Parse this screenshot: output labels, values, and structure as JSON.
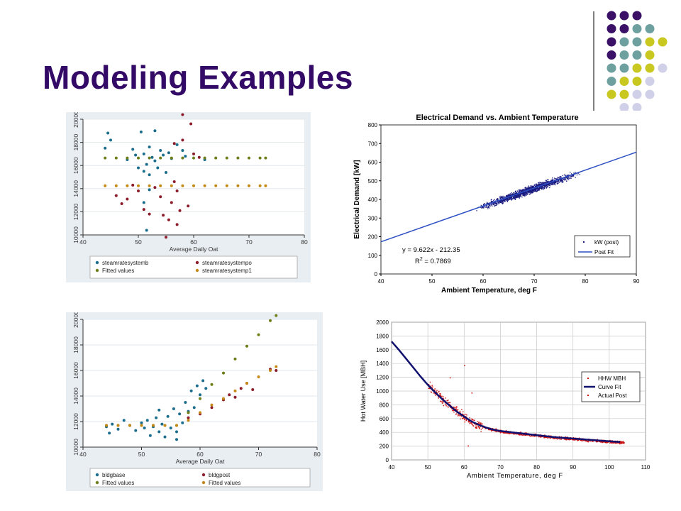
{
  "slide": {
    "title": "Modeling Examples",
    "colors": {
      "title": "#330a66",
      "purple": "#3a1166",
      "teal": "#6fa0a0",
      "olive": "#c8c820",
      "lavender": "#d0d0e8"
    },
    "decoration_rows": [
      [
        "purple",
        "purple",
        "purple"
      ],
      [
        "purple",
        "purple",
        "teal",
        "teal"
      ],
      [
        "purple",
        "teal",
        "teal",
        "olive",
        "olive"
      ],
      [
        "purple",
        "teal",
        "teal",
        "olive"
      ],
      [
        "teal",
        "teal",
        "olive",
        "olive",
        "lavender"
      ],
      [
        "teal",
        "olive",
        "olive",
        "lavender"
      ],
      [
        "olive",
        "olive",
        "lavender",
        "lavender"
      ],
      [
        "lavender",
        "lavender"
      ]
    ]
  },
  "chart_data": [
    {
      "type": "scatter",
      "title": "",
      "xlabel": "Average Daily Oat",
      "ylabel": "",
      "xlim": [
        40,
        80
      ],
      "ylim": [
        10000,
        20000
      ],
      "x_ticks": [
        40,
        50,
        60,
        70,
        80
      ],
      "y_ticks": [
        10000,
        12000,
        14000,
        16000,
        18000,
        20000
      ],
      "legend_position": "bottom",
      "grid": true,
      "series": [
        {
          "name": "steamratesystemb",
          "color": "#1a6e8c",
          "points": [
            [
              44,
              17500
            ],
            [
              44.5,
              18800
            ],
            [
              45,
              18200
            ],
            [
              48,
              16500
            ],
            [
              49,
              17400
            ],
            [
              49.5,
              16900
            ],
            [
              50,
              15800
            ],
            [
              50.5,
              18900
            ],
            [
              51,
              17000
            ],
            [
              51,
              15500
            ],
            [
              51.5,
              16100
            ],
            [
              52,
              17600
            ],
            [
              52,
              15200
            ],
            [
              52.5,
              16700
            ],
            [
              53,
              19000
            ],
            [
              53,
              16400
            ],
            [
              53.5,
              15800
            ],
            [
              54,
              17300
            ],
            [
              54.5,
              16900
            ],
            [
              55,
              15400
            ],
            [
              55.5,
              17100
            ],
            [
              56,
              16600
            ],
            [
              57,
              17800
            ],
            [
              58,
              17300
            ],
            [
              58.5,
              16800
            ],
            [
              62,
              16500
            ],
            [
              51,
              12800
            ],
            [
              51.5,
              10400
            ],
            [
              52,
              13900
            ]
          ]
        },
        {
          "name": "steamratesystempo",
          "color": "#8c1c2a",
          "points": [
            [
              46,
              13400
            ],
            [
              47,
              12700
            ],
            [
              48,
              13100
            ],
            [
              49,
              14300
            ],
            [
              50,
              13800
            ],
            [
              51,
              12200
            ],
            [
              52,
              11800
            ],
            [
              53,
              14100
            ],
            [
              54,
              13300
            ],
            [
              54.5,
              11700
            ],
            [
              55,
              9800
            ],
            [
              55.5,
              11300
            ],
            [
              56,
              12800
            ],
            [
              56.5,
              17900
            ],
            [
              57,
              10900
            ],
            [
              57.5,
              12100
            ],
            [
              58,
              18200
            ],
            [
              58,
              20400
            ],
            [
              59,
              12500
            ],
            [
              59.5,
              19600
            ],
            [
              60,
              17000
            ],
            [
              61,
              16700
            ],
            [
              56.5,
              14600
            ],
            [
              57,
              13800
            ]
          ]
        },
        {
          "name": "Fitted values",
          "color": "#6e7d18",
          "points": [
            [
              44,
              16650
            ],
            [
              46,
              16650
            ],
            [
              48,
              16650
            ],
            [
              50,
              16650
            ],
            [
              52,
              16650
            ],
            [
              54,
              16650
            ],
            [
              56,
              16650
            ],
            [
              58,
              16650
            ],
            [
              60,
              16650
            ],
            [
              62,
              16650
            ],
            [
              64,
              16650
            ],
            [
              66,
              16650
            ],
            [
              68,
              16650
            ],
            [
              70,
              16650
            ],
            [
              72,
              16650
            ],
            [
              73,
              16650
            ]
          ]
        },
        {
          "name": "steamratesystemp1",
          "color": "#c48a18",
          "points": [
            [
              44,
              14250
            ],
            [
              46,
              14250
            ],
            [
              48,
              14250
            ],
            [
              50,
              14250
            ],
            [
              52,
              14250
            ],
            [
              54,
              14250
            ],
            [
              56,
              14250
            ],
            [
              58,
              14250
            ],
            [
              60,
              14250
            ],
            [
              62,
              14250
            ],
            [
              64,
              14250
            ],
            [
              66,
              14250
            ],
            [
              68,
              14250
            ],
            [
              70,
              14250
            ],
            [
              72,
              14250
            ],
            [
              73,
              14250
            ]
          ]
        }
      ]
    },
    {
      "type": "scatter",
      "title": "Electrical Demand vs. Ambient Temperature",
      "xlabel": "Ambient Temperature, deg F",
      "ylabel": "Electrical Demand [kW]",
      "xlim": [
        40,
        90
      ],
      "ylim": [
        0,
        800
      ],
      "x_ticks": [
        40,
        50,
        60,
        70,
        80,
        90
      ],
      "y_ticks": [
        0,
        100,
        200,
        300,
        400,
        500,
        600,
        700,
        800
      ],
      "legend_position": "bottom-right",
      "grid": false,
      "annotations": [
        "y = 9.622x - 212.35",
        "R",
        "2",
        " = 0.7869"
      ],
      "fit": {
        "slope": 9.622,
        "intercept": -212.35,
        "x_range": [
          40,
          90
        ]
      },
      "scatter_cloud": {
        "x_range": [
          55,
          83
        ]
      },
      "series": [
        {
          "name": "kW (post)",
          "color": "#1a1a80"
        },
        {
          "name": "Post Fit",
          "color": "#2d4fc4"
        }
      ]
    },
    {
      "type": "scatter",
      "title": "",
      "xlabel": "Average Daily Oat",
      "ylabel": "",
      "xlim": [
        40,
        80
      ],
      "ylim": [
        10000,
        20000
      ],
      "x_ticks": [
        40,
        50,
        60,
        70,
        80
      ],
      "y_ticks": [
        10000,
        12000,
        14000,
        16000,
        18000,
        20000
      ],
      "legend_position": "bottom",
      "grid": true,
      "series": [
        {
          "name": "bldgbase",
          "color": "#1a6e8c",
          "points": [
            [
              44,
              11600
            ],
            [
              44.5,
              11100
            ],
            [
              45,
              11800
            ],
            [
              46,
              11400
            ],
            [
              47,
              12100
            ],
            [
              48,
              11700
            ],
            [
              49,
              11300
            ],
            [
              50,
              11900
            ],
            [
              50.5,
              11500
            ],
            [
              51,
              12100
            ],
            [
              51.5,
              10900
            ],
            [
              52,
              11600
            ],
            [
              52.5,
              12300
            ],
            [
              53,
              11200
            ],
            [
              53.5,
              11800
            ],
            [
              54,
              10800
            ],
            [
              54.5,
              12400
            ],
            [
              55,
              11500
            ],
            [
              55.5,
              13000
            ],
            [
              56,
              11200
            ],
            [
              56.5,
              12600
            ],
            [
              57,
              11900
            ],
            [
              57.5,
              13500
            ],
            [
              58,
              12800
            ],
            [
              58.5,
              14400
            ],
            [
              59,
              13100
            ],
            [
              59.5,
              14800
            ],
            [
              60,
              14100
            ],
            [
              60.5,
              15200
            ],
            [
              61,
              14600
            ],
            [
              56,
              10600
            ],
            [
              53,
              12900
            ]
          ]
        },
        {
          "name": "bldgpost",
          "color": "#8c1c2a",
          "points": [
            [
              58,
              12300
            ],
            [
              60,
              12600
            ],
            [
              62,
              13100
            ],
            [
              64,
              13700
            ],
            [
              65,
              14100
            ],
            [
              66,
              13900
            ],
            [
              67,
              14600
            ],
            [
              68,
              15000
            ],
            [
              69,
              14500
            ],
            [
              72,
              16100
            ],
            [
              73,
              16000
            ]
          ]
        },
        {
          "name": "Fitted values",
          "color": "#6e7d18",
          "points": [
            [
              44,
              11700
            ],
            [
              46,
              11700
            ],
            [
              48,
              11700
            ],
            [
              50,
              11700
            ],
            [
              52,
              11700
            ],
            [
              54,
              11700
            ],
            [
              56,
              11700
            ],
            [
              58,
              12700
            ],
            [
              60,
              13800
            ],
            [
              62,
              14900
            ],
            [
              64,
              15800
            ],
            [
              66,
              16900
            ],
            [
              68,
              17900
            ],
            [
              70,
              18800
            ],
            [
              72,
              19900
            ],
            [
              73,
              20300
            ]
          ]
        },
        {
          "name": "Fitted values",
          "color": "#c48a18",
          "points": [
            [
              44,
              11700
            ],
            [
              46,
              11700
            ],
            [
              48,
              11700
            ],
            [
              50,
              11700
            ],
            [
              52,
              11700
            ],
            [
              54,
              11700
            ],
            [
              56,
              11700
            ],
            [
              58,
              12100
            ],
            [
              60,
              12700
            ],
            [
              62,
              13300
            ],
            [
              64,
              13800
            ],
            [
              66,
              14400
            ],
            [
              68,
              15000
            ],
            [
              70,
              15500
            ],
            [
              72,
              16000
            ],
            [
              73,
              16300
            ]
          ]
        }
      ]
    },
    {
      "type": "scatter",
      "title": "",
      "xlabel": "Ambient Temperature, deg F",
      "ylabel": "Hot Water Use [MBH]",
      "xlim": [
        40,
        110
      ],
      "ylim": [
        0,
        2000
      ],
      "x_ticks": [
        40,
        50,
        60,
        70,
        80,
        90,
        100,
        110
      ],
      "y_ticks": [
        0,
        200,
        400,
        600,
        800,
        1000,
        1200,
        1400,
        1600,
        1800,
        2000
      ],
      "legend_position": "right",
      "grid": true,
      "scatter_cloud": {
        "x_range": [
          50,
          104
        ]
      },
      "series": [
        {
          "name": "HHW MBH",
          "color": "#cc1010"
        },
        {
          "name": "Curve Fit",
          "color": "#10106e",
          "points": [
            [
              40,
              1720
            ],
            [
              42,
              1600
            ],
            [
              44,
              1470
            ],
            [
              46,
              1340
            ],
            [
              48,
              1210
            ],
            [
              50,
              1090
            ],
            [
              52,
              980
            ],
            [
              54,
              880
            ],
            [
              56,
              790
            ],
            [
              58,
              700
            ],
            [
              60,
              630
            ],
            [
              62,
              560
            ],
            [
              64,
              510
            ],
            [
              66,
              470
            ],
            [
              68,
              440
            ],
            [
              70,
              420
            ],
            [
              75,
              390
            ],
            [
              80,
              360
            ],
            [
              85,
              330
            ],
            [
              90,
              310
            ],
            [
              95,
              290
            ],
            [
              100,
              270
            ],
            [
              103,
              260
            ]
          ]
        },
        {
          "name": "Actual Post",
          "color": "#cc1010"
        }
      ]
    }
  ]
}
